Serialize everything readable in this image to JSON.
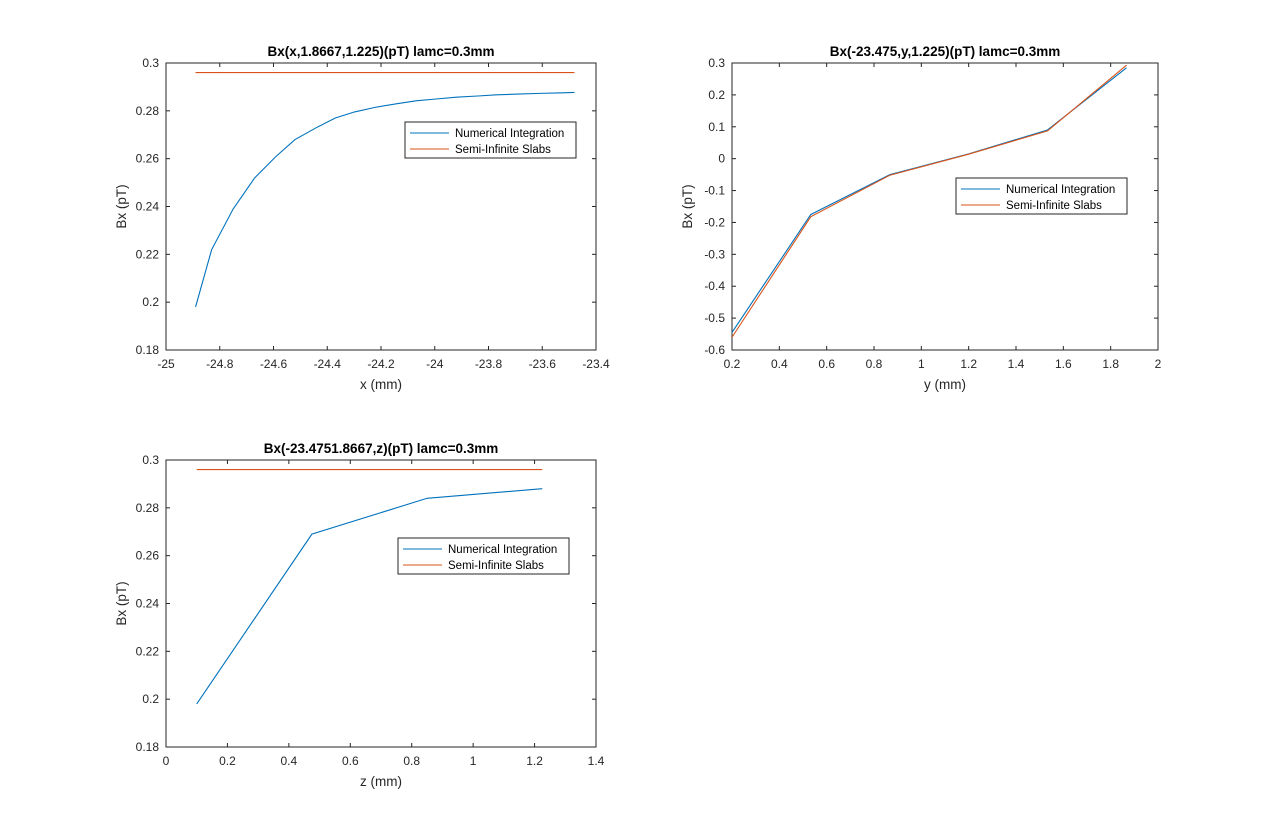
{
  "colors": {
    "numerical": "#0072BD",
    "semi_infinite": "#D95319"
  },
  "chart_data": [
    {
      "id": "plot-x",
      "type": "line",
      "title": "Bx(x,1.8667,1.225)(pT) lamc=0.3mm",
      "xlabel": "x (mm)",
      "ylabel": "Bx (pT)",
      "xlim": [
        -25,
        -23.4
      ],
      "ylim": [
        0.18,
        0.3
      ],
      "xticks": [
        -25,
        -24.8,
        -24.6,
        -24.4,
        -24.2,
        -24,
        -23.8,
        -23.6,
        -23.4
      ],
      "yticks": [
        0.18,
        0.2,
        0.22,
        0.24,
        0.26,
        0.28,
        0.3
      ],
      "xtick_labels": [
        "-25",
        "-24.8",
        "-24.6",
        "-24.4",
        "-24.2",
        "-24",
        "-23.8",
        "-23.6",
        "-23.4"
      ],
      "ytick_labels": [
        "0.18",
        "0.2",
        "0.22",
        "0.24",
        "0.26",
        "0.28",
        "0.3"
      ],
      "legend_position": "right",
      "series": [
        {
          "name": "Numerical Integration",
          "color": "#0072BD",
          "x": [
            -24.89,
            -24.83,
            -24.75,
            -24.67,
            -24.59,
            -24.52,
            -24.44,
            -24.37,
            -24.3,
            -24.22,
            -24.14,
            -24.07,
            -23.99,
            -23.92,
            -23.84,
            -23.77,
            -23.69,
            -23.61,
            -23.54,
            -23.48
          ],
          "y": [
            0.198,
            0.222,
            0.239,
            0.252,
            0.261,
            0.268,
            0.273,
            0.277,
            0.2795,
            0.2815,
            0.283,
            0.2842,
            0.285,
            0.2857,
            0.2862,
            0.2867,
            0.287,
            0.2873,
            0.2875,
            0.2877
          ]
        },
        {
          "name": "Semi-Infinite Slabs",
          "color": "#D95319",
          "x": [
            -24.89,
            -23.48
          ],
          "y": [
            0.296,
            0.296
          ]
        }
      ]
    },
    {
      "id": "plot-y",
      "type": "line",
      "title": "Bx(-23.475,y,1.225)(pT) lamc=0.3mm",
      "xlabel": "y (mm)",
      "ylabel": "Bx (pT)",
      "xlim": [
        0.2,
        2
      ],
      "ylim": [
        -0.6,
        0.3
      ],
      "xticks": [
        0.2,
        0.4,
        0.6,
        0.8,
        1,
        1.2,
        1.4,
        1.6,
        1.8,
        2
      ],
      "yticks": [
        -0.6,
        -0.5,
        -0.4,
        -0.3,
        -0.2,
        -0.1,
        0,
        0.1,
        0.2,
        0.3
      ],
      "xtick_labels": [
        "0.2",
        "0.4",
        "0.6",
        "0.8",
        "1",
        "1.2",
        "1.4",
        "1.6",
        "1.8",
        "2"
      ],
      "ytick_labels": [
        "-0.6",
        "-0.5",
        "-0.4",
        "-0.3",
        "-0.2",
        "-0.1",
        "0",
        "0.1",
        "0.2",
        "0.3"
      ],
      "legend_position": "right",
      "series": [
        {
          "name": "Numerical Integration",
          "color": "#0072BD",
          "x": [
            0.2,
            0.533,
            0.867,
            1.2,
            1.533,
            1.867
          ],
          "y": [
            -0.545,
            -0.175,
            -0.05,
            0.015,
            0.09,
            0.285
          ]
        },
        {
          "name": "Semi-Infinite Slabs",
          "color": "#D95319",
          "x": [
            0.2,
            0.533,
            0.867,
            1.2,
            1.533,
            1.867
          ],
          "y": [
            -0.56,
            -0.182,
            -0.052,
            0.014,
            0.087,
            0.293
          ]
        }
      ]
    },
    {
      "id": "plot-z",
      "type": "line",
      "title": "Bx(-23.4751.8667,z)(pT) lamc=0.3mm",
      "xlabel": "z (mm)",
      "ylabel": "Bx (pT)",
      "xlim": [
        0,
        1.4
      ],
      "ylim": [
        0.18,
        0.3
      ],
      "xticks": [
        0,
        0.2,
        0.4,
        0.6,
        0.8,
        1,
        1.2,
        1.4
      ],
      "yticks": [
        0.18,
        0.2,
        0.22,
        0.24,
        0.26,
        0.28,
        0.3
      ],
      "xtick_labels": [
        "0",
        "0.2",
        "0.4",
        "0.6",
        "0.8",
        "1",
        "1.2",
        "1.4"
      ],
      "ytick_labels": [
        "0.18",
        "0.2",
        "0.22",
        "0.24",
        "0.26",
        "0.28",
        "0.3"
      ],
      "legend_position": "right",
      "series": [
        {
          "name": "Numerical Integration",
          "color": "#0072BD",
          "x": [
            0.1,
            0.475,
            0.85,
            1.225
          ],
          "y": [
            0.198,
            0.269,
            0.284,
            0.288
          ]
        },
        {
          "name": "Semi-Infinite Slabs",
          "color": "#D95319",
          "x": [
            0.1,
            1.225
          ],
          "y": [
            0.296,
            0.296
          ]
        }
      ]
    }
  ]
}
